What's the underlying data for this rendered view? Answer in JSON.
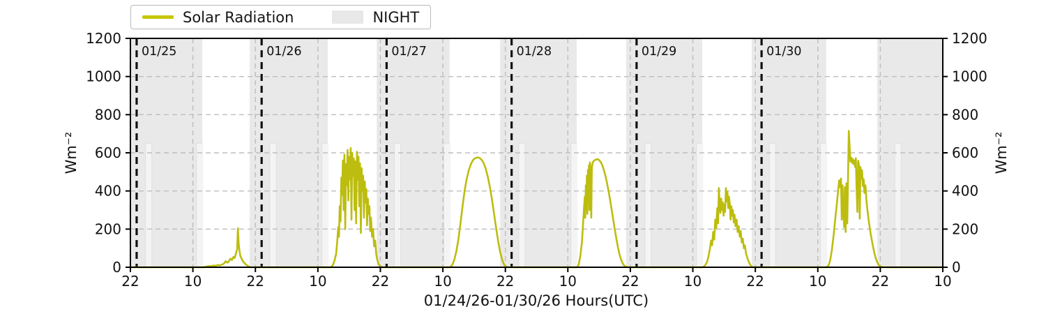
{
  "figure": {
    "background": "#ffffff"
  },
  "legend": {
    "items": [
      {
        "label": "Solar Radiation",
        "type": "line",
        "color": "#c6c60a"
      },
      {
        "label": "NIGHT",
        "type": "patch",
        "color": "#e8e8e8"
      }
    ]
  },
  "axes": {
    "ylabel_left": "Wm⁻²",
    "ylabel_right": "Wm⁻²",
    "xlabel": "01/24/26-01/30/26  Hours(UTC)"
  },
  "chart_data": {
    "type": "line",
    "title": "",
    "xlabel": "01/24/26-01/30/26  Hours(UTC)",
    "ylabel": "Wm⁻²",
    "x_unit": "hours since 01/24/26 22:00 UTC",
    "xlim": [
      0,
      156
    ],
    "ylim": [
      0,
      1200
    ],
    "grid": true,
    "legend_position": "top-left",
    "colors": {
      "line": "#bcbd0e",
      "night_fill": "#e9e9e9",
      "grid": "#bdbdbd",
      "day_line": "#111111",
      "day_label": "#2f2f2f",
      "spine": "#000000"
    },
    "y_ticks": [
      0,
      200,
      400,
      600,
      800,
      1000,
      1200
    ],
    "x_ticks": [
      {
        "t": 0,
        "label": "22"
      },
      {
        "t": 12,
        "label": "10"
      },
      {
        "t": 24,
        "label": "22"
      },
      {
        "t": 36,
        "label": "10"
      },
      {
        "t": 48,
        "label": "22"
      },
      {
        "t": 60,
        "label": "10"
      },
      {
        "t": 72,
        "label": "22"
      },
      {
        "t": 84,
        "label": "10"
      },
      {
        "t": 96,
        "label": "22"
      },
      {
        "t": 108,
        "label": "10"
      },
      {
        "t": 120,
        "label": "22"
      },
      {
        "t": 132,
        "label": "10"
      },
      {
        "t": 144,
        "label": "22"
      },
      {
        "t": 156,
        "label": "10"
      }
    ],
    "day_lines": [
      {
        "t": 1.2,
        "label": "01/25"
      },
      {
        "t": 25.2,
        "label": "01/26"
      },
      {
        "t": 49.2,
        "label": "01/27"
      },
      {
        "t": 73.2,
        "label": "01/28"
      },
      {
        "t": 97.2,
        "label": "01/29"
      },
      {
        "t": 121.2,
        "label": "01/30"
      }
    ],
    "night_regions": [
      [
        0,
        13.8
      ],
      [
        22.9,
        37.9
      ],
      [
        47.3,
        61.3
      ],
      [
        71.0,
        85.7
      ],
      [
        95.2,
        109.8
      ],
      [
        119.3,
        133.6
      ],
      [
        143.4,
        156
      ]
    ],
    "twilight_bars": {
      "centers": [
        3.5,
        13.3,
        27.4,
        37.4,
        51.3,
        60.8,
        75.2,
        85.2,
        99.4,
        109.3,
        123.3,
        133.1,
        147.4
      ],
      "width_hours": 1.2,
      "top_value": 650
    },
    "series": [
      {
        "name": "Solar Radiation",
        "color": "#bcbd0e",
        "points": [
          [
            0,
            0
          ],
          [
            14,
            0
          ],
          [
            14.5,
            3
          ],
          [
            15,
            6
          ],
          [
            15.5,
            5
          ],
          [
            16,
            9
          ],
          [
            16.4,
            7
          ],
          [
            16.8,
            12
          ],
          [
            17.2,
            10
          ],
          [
            17.6,
            14
          ],
          [
            18,
            20
          ],
          [
            18.3,
            32
          ],
          [
            18.6,
            24
          ],
          [
            18.9,
            30
          ],
          [
            19.2,
            45
          ],
          [
            19.5,
            38
          ],
          [
            19.8,
            55
          ],
          [
            20,
            48
          ],
          [
            20.2,
            65
          ],
          [
            20.35,
            80
          ],
          [
            20.5,
            95
          ],
          [
            20.65,
            205
          ],
          [
            20.8,
            120
          ],
          [
            20.95,
            85
          ],
          [
            21.1,
            60
          ],
          [
            21.3,
            48
          ],
          [
            21.6,
            32
          ],
          [
            21.9,
            22
          ],
          [
            22.2,
            14
          ],
          [
            22.6,
            6
          ],
          [
            23,
            0
          ],
          [
            38.5,
            0
          ],
          [
            38.9,
            12
          ],
          [
            39.2,
            35
          ],
          [
            39.5,
            70
          ],
          [
            39.7,
            130
          ],
          [
            39.9,
            210
          ],
          [
            40.05,
            160
          ],
          [
            40.2,
            320
          ],
          [
            40.35,
            240
          ],
          [
            40.5,
            470
          ],
          [
            40.65,
            380
          ],
          [
            40.8,
            560
          ],
          [
            40.95,
            300
          ],
          [
            41.1,
            590
          ],
          [
            41.25,
            200
          ],
          [
            41.4,
            540
          ],
          [
            41.55,
            430
          ],
          [
            41.7,
            615
          ],
          [
            41.85,
            350
          ],
          [
            42,
            580
          ],
          [
            42.15,
            460
          ],
          [
            42.3,
            625
          ],
          [
            42.45,
            250
          ],
          [
            42.6,
            600
          ],
          [
            42.75,
            480
          ],
          [
            42.9,
            570
          ],
          [
            43.05,
            300
          ],
          [
            43.2,
            555
          ],
          [
            43.35,
            230
          ],
          [
            43.5,
            605
          ],
          [
            43.65,
            460
          ],
          [
            43.8,
            580
          ],
          [
            43.95,
            320
          ],
          [
            44.1,
            545
          ],
          [
            44.25,
            180
          ],
          [
            44.4,
            520
          ],
          [
            44.55,
            400
          ],
          [
            44.7,
            480
          ],
          [
            44.85,
            260
          ],
          [
            45,
            450
          ],
          [
            45.15,
            340
          ],
          [
            45.3,
            410
          ],
          [
            45.45,
            220
          ],
          [
            45.6,
            360
          ],
          [
            45.75,
            280
          ],
          [
            45.9,
            320
          ],
          [
            46.05,
            190
          ],
          [
            46.2,
            260
          ],
          [
            46.4,
            160
          ],
          [
            46.6,
            200
          ],
          [
            46.8,
            110
          ],
          [
            47,
            140
          ],
          [
            47.2,
            70
          ],
          [
            47.4,
            40
          ],
          [
            47.7,
            15
          ],
          [
            48,
            4
          ],
          [
            48.4,
            0
          ],
          [
            61.4,
            0
          ],
          [
            61.8,
            12
          ],
          [
            62.2,
            40
          ],
          [
            62.6,
            85
          ],
          [
            63,
            150
          ],
          [
            63.4,
            235
          ],
          [
            63.8,
            325
          ],
          [
            64.2,
            405
          ],
          [
            64.6,
            465
          ],
          [
            65,
            510
          ],
          [
            65.4,
            542
          ],
          [
            65.8,
            562
          ],
          [
            66.2,
            572
          ],
          [
            66.6,
            576
          ],
          [
            67,
            574
          ],
          [
            67.4,
            565
          ],
          [
            67.8,
            548
          ],
          [
            68.2,
            520
          ],
          [
            68.6,
            478
          ],
          [
            69,
            425
          ],
          [
            69.4,
            360
          ],
          [
            69.8,
            285
          ],
          [
            70.2,
            210
          ],
          [
            70.6,
            140
          ],
          [
            71,
            80
          ],
          [
            71.4,
            38
          ],
          [
            71.8,
            12
          ],
          [
            72.2,
            2
          ],
          [
            72.6,
            0
          ],
          [
            85.8,
            0
          ],
          [
            86.1,
            15
          ],
          [
            86.4,
            60
          ],
          [
            86.7,
            130
          ],
          [
            86.9,
            220
          ],
          [
            87.1,
            310
          ],
          [
            87.25,
            370
          ],
          [
            87.35,
            260
          ],
          [
            87.45,
            430
          ],
          [
            87.55,
            300
          ],
          [
            87.65,
            480
          ],
          [
            87.75,
            280
          ],
          [
            87.85,
            510
          ],
          [
            87.95,
            350
          ],
          [
            88.05,
            535
          ],
          [
            88.15,
            300
          ],
          [
            88.25,
            550
          ],
          [
            88.4,
            500
          ],
          [
            88.5,
            260
          ],
          [
            88.6,
            520
          ],
          [
            88.75,
            545
          ],
          [
            88.9,
            555
          ],
          [
            89.1,
            560
          ],
          [
            89.4,
            565
          ],
          [
            89.7,
            567
          ],
          [
            90,
            562
          ],
          [
            90.3,
            552
          ],
          [
            90.6,
            536
          ],
          [
            90.9,
            512
          ],
          [
            91.2,
            482
          ],
          [
            91.5,
            445
          ],
          [
            91.8,
            402
          ],
          [
            92.1,
            355
          ],
          [
            92.4,
            305
          ],
          [
            92.7,
            252
          ],
          [
            93,
            200
          ],
          [
            93.3,
            152
          ],
          [
            93.6,
            108
          ],
          [
            93.9,
            70
          ],
          [
            94.2,
            42
          ],
          [
            94.5,
            22
          ],
          [
            94.8,
            9
          ],
          [
            95.2,
            2
          ],
          [
            95.6,
            0
          ],
          [
            109.9,
            0
          ],
          [
            110.3,
            8
          ],
          [
            110.7,
            25
          ],
          [
            111,
            55
          ],
          [
            111.3,
            100
          ],
          [
            111.5,
            140
          ],
          [
            111.7,
            115
          ],
          [
            111.9,
            185
          ],
          [
            112.1,
            145
          ],
          [
            112.3,
            250
          ],
          [
            112.5,
            205
          ],
          [
            112.7,
            310
          ],
          [
            112.85,
            230
          ],
          [
            113,
            415
          ],
          [
            113.15,
            330
          ],
          [
            113.3,
            285
          ],
          [
            113.45,
            360
          ],
          [
            113.6,
            300
          ],
          [
            113.75,
            340
          ],
          [
            113.9,
            270
          ],
          [
            114.05,
            330
          ],
          [
            114.2,
            290
          ],
          [
            114.35,
            415
          ],
          [
            114.5,
            345
          ],
          [
            114.65,
            395
          ],
          [
            114.8,
            310
          ],
          [
            114.95,
            370
          ],
          [
            115.1,
            330
          ],
          [
            115.25,
            250
          ],
          [
            115.4,
            320
          ],
          [
            115.55,
            270
          ],
          [
            115.7,
            300
          ],
          [
            115.85,
            235
          ],
          [
            116,
            275
          ],
          [
            116.2,
            215
          ],
          [
            116.4,
            250
          ],
          [
            116.6,
            185
          ],
          [
            116.8,
            215
          ],
          [
            117,
            160
          ],
          [
            117.2,
            190
          ],
          [
            117.4,
            130
          ],
          [
            117.6,
            150
          ],
          [
            117.8,
            100
          ],
          [
            118,
            115
          ],
          [
            118.2,
            75
          ],
          [
            118.5,
            45
          ],
          [
            118.8,
            25
          ],
          [
            119.1,
            10
          ],
          [
            119.5,
            0
          ],
          [
            133.7,
            0
          ],
          [
            134.1,
            12
          ],
          [
            134.4,
            40
          ],
          [
            134.7,
            90
          ],
          [
            135,
            160
          ],
          [
            135.3,
            240
          ],
          [
            135.6,
            320
          ],
          [
            135.9,
            400
          ],
          [
            136.1,
            455
          ],
          [
            136.3,
            420
          ],
          [
            136.45,
            465
          ],
          [
            136.6,
            250
          ],
          [
            136.75,
            430
          ],
          [
            136.9,
            300
          ],
          [
            137.05,
            210
          ],
          [
            137.2,
            420
          ],
          [
            137.35,
            185
          ],
          [
            137.5,
            440
          ],
          [
            137.65,
            230
          ],
          [
            137.8,
            470
          ],
          [
            137.95,
            715
          ],
          [
            138.1,
            640
          ],
          [
            138.25,
            555
          ],
          [
            138.4,
            575
          ],
          [
            138.55,
            548
          ],
          [
            138.7,
            568
          ],
          [
            138.85,
            542
          ],
          [
            139,
            560
          ],
          [
            139.15,
            525
          ],
          [
            139.3,
            572
          ],
          [
            139.45,
            410
          ],
          [
            139.6,
            290
          ],
          [
            139.75,
            558
          ],
          [
            139.9,
            535
          ],
          [
            140.05,
            255
          ],
          [
            140.2,
            525
          ],
          [
            140.35,
            465
          ],
          [
            140.5,
            508
          ],
          [
            140.65,
            425
          ],
          [
            140.8,
            462
          ],
          [
            140.95,
            390
          ],
          [
            141.15,
            430
          ],
          [
            141.35,
            345
          ],
          [
            141.55,
            295
          ],
          [
            141.75,
            250
          ],
          [
            141.95,
            210
          ],
          [
            142.15,
            175
          ],
          [
            142.4,
            138
          ],
          [
            142.65,
            102
          ],
          [
            142.9,
            70
          ],
          [
            143.15,
            45
          ],
          [
            143.45,
            24
          ],
          [
            143.75,
            10
          ],
          [
            144.1,
            3
          ],
          [
            144.5,
            0
          ],
          [
            156,
            0
          ]
        ]
      }
    ]
  }
}
